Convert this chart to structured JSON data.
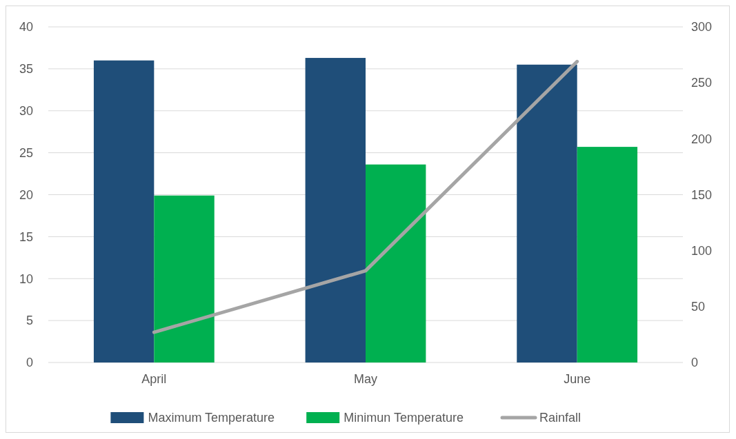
{
  "chart_data": {
    "type": "bar",
    "categories": [
      "April",
      "May",
      "June"
    ],
    "series": [
      {
        "name": "Maximum Temperature",
        "color": "#1f4e79",
        "values": [
          36.0,
          36.3,
          35.5
        ]
      },
      {
        "name": "Minimun Temperature",
        "color": "#00b050",
        "values": [
          19.9,
          23.6,
          25.7
        ]
      },
      {
        "name": "Rainfall",
        "type": "line",
        "axis": "y2",
        "color": "#a5a5a5",
        "values": [
          27,
          82,
          269
        ]
      }
    ],
    "ylim": [
      0,
      40
    ],
    "yticks": [
      0,
      5,
      10,
      15,
      20,
      25,
      30,
      35,
      40
    ],
    "y2lim": [
      0,
      300
    ],
    "y2ticks": [
      0,
      50,
      100,
      150,
      200,
      250,
      300
    ],
    "grid": "y",
    "legend": "bottom"
  }
}
